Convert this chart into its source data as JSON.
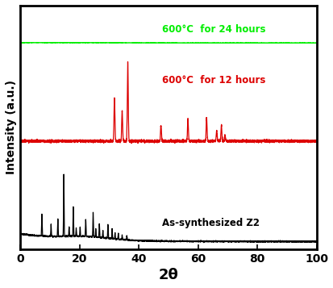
{
  "xlabel": "2θ",
  "ylabel": "Intensity (a.u.)",
  "xlim": [
    0,
    100
  ],
  "label_24h": "600°C  for 24 hours",
  "label_12h": "600°C  for 12 hours",
  "label_as": "As-synthesized Z2",
  "color_24h": "#00ee00",
  "color_12h": "#dd0000",
  "color_as": "#000000",
  "zno_peaks_2theta": [
    31.8,
    34.4,
    36.3,
    47.5,
    56.6,
    62.9,
    66.3,
    67.9,
    69.1
  ],
  "zno_peak_heights": [
    0.55,
    0.38,
    1.0,
    0.2,
    0.28,
    0.3,
    0.13,
    0.2,
    0.08
  ],
  "zif8_peaks_2theta": [
    7.3,
    10.4,
    12.7,
    14.7,
    16.5,
    17.9,
    18.9,
    20.2,
    22.1,
    24.6,
    25.5,
    26.7,
    27.9,
    29.6,
    31.0,
    32.0,
    33.1,
    34.4,
    36.0
  ],
  "zif8_peak_heights": [
    0.28,
    0.15,
    0.22,
    0.8,
    0.12,
    0.38,
    0.1,
    0.12,
    0.22,
    0.32,
    0.1,
    0.18,
    0.1,
    0.18,
    0.12,
    0.08,
    0.08,
    0.06,
    0.05
  ]
}
